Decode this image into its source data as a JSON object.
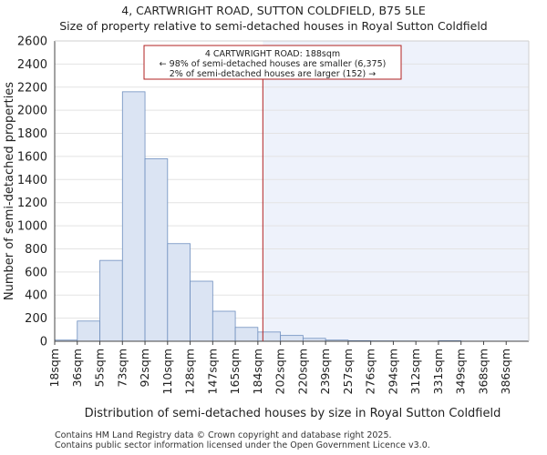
{
  "chart_data": {
    "type": "bar",
    "title": "4, CARTWRIGHT ROAD, SUTTON COLDFIELD, B75 5LE",
    "subtitle": "Size of property relative to semi-detached houses in Royal Sutton Coldfield",
    "xlabel": "Distribution of semi-detached houses by size in Royal Sutton Coldfield",
    "ylabel": "Number of semi-detached properties",
    "ylim": [
      0,
      2600
    ],
    "yticks": [
      0,
      200,
      400,
      600,
      800,
      1000,
      1200,
      1400,
      1600,
      1800,
      2000,
      2200,
      2400,
      2600
    ],
    "categories": [
      "18sqm",
      "36sqm",
      "55sqm",
      "73sqm",
      "92sqm",
      "110sqm",
      "128sqm",
      "147sqm",
      "165sqm",
      "184sqm",
      "202sqm",
      "220sqm",
      "239sqm",
      "257sqm",
      "276sqm",
      "294sqm",
      "312sqm",
      "331sqm",
      "349sqm",
      "368sqm",
      "386sqm"
    ],
    "values": [
      10,
      175,
      700,
      2160,
      1580,
      845,
      520,
      260,
      120,
      80,
      50,
      25,
      10,
      5,
      3,
      2,
      0,
      5,
      0,
      0,
      0
    ],
    "marker": {
      "value_sqm": 188,
      "bin_position": 9.22
    },
    "annotation": {
      "line1": "4 CARTWRIGHT ROAD: 188sqm",
      "line2": "← 98% of semi-detached houses are smaller (6,375)",
      "line3": "2% of semi-detached houses are larger (152) →"
    },
    "colors": {
      "bar_fill": "#dbe4f3",
      "bar_stroke": "#6f8fbf",
      "highlight_bg": "#eef2fb",
      "marker": "#b22222",
      "annotation_border": "#b22222"
    }
  },
  "footer": {
    "line1": "Contains HM Land Registry data © Crown copyright and database right 2025.",
    "line2": "Contains public sector information licensed under the Open Government Licence v3.0."
  }
}
